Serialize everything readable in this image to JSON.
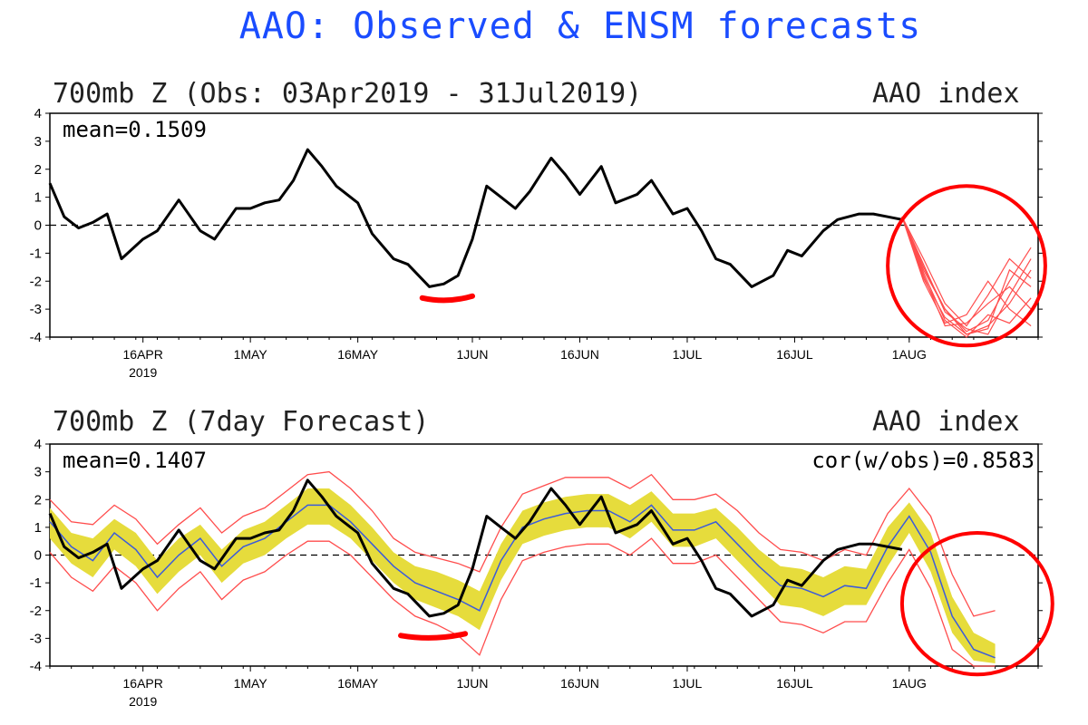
{
  "title": "AAO: Observed & ENSM forecasts",
  "colors": {
    "title": "#1a4cff",
    "observed": "#000000",
    "ens_mean": "#3b5bdb",
    "ens_band": "#e6dc3c",
    "ens_member": "#ff4d4d",
    "annotation": "#ff0000"
  },
  "chart_data": [
    {
      "type": "line",
      "panel_title": "700mb Z (Obs: 03Apr2019 - 31Jul2019)",
      "right_label": "AAO index",
      "stat_label": "mean=0.1509",
      "ylim": [
        -4,
        4
      ],
      "yticks": [
        "4",
        "3",
        "2",
        "1",
        "0",
        "-1",
        "-2",
        "-3",
        "-4"
      ],
      "xticks": [
        {
          "date": "2019-04-16",
          "label": "16APR",
          "sublabel": "2019"
        },
        {
          "date": "2019-05-01",
          "label": "1MAY"
        },
        {
          "date": "2019-05-16",
          "label": "16MAY"
        },
        {
          "date": "2019-06-01",
          "label": "1JUN"
        },
        {
          "date": "2019-06-16",
          "label": "16JUN"
        },
        {
          "date": "2019-07-01",
          "label": "1JUL"
        },
        {
          "date": "2019-07-16",
          "label": "16JUL"
        },
        {
          "date": "2019-08-01",
          "label": "1AUG"
        }
      ],
      "xlim": [
        "2019-04-03",
        "2019-08-19"
      ],
      "zero_line": "dashed",
      "observed": {
        "x": [
          "2019-04-03",
          "2019-04-05",
          "2019-04-07",
          "2019-04-09",
          "2019-04-11",
          "2019-04-13",
          "2019-04-16",
          "2019-04-18",
          "2019-04-21",
          "2019-04-24",
          "2019-04-26",
          "2019-04-29",
          "2019-05-01",
          "2019-05-03",
          "2019-05-05",
          "2019-05-07",
          "2019-05-09",
          "2019-05-11",
          "2019-05-13",
          "2019-05-16",
          "2019-05-18",
          "2019-05-21",
          "2019-05-23",
          "2019-05-26",
          "2019-05-28",
          "2019-05-30",
          "2019-06-01",
          "2019-06-03",
          "2019-06-05",
          "2019-06-07",
          "2019-06-09",
          "2019-06-12",
          "2019-06-14",
          "2019-06-16",
          "2019-06-19",
          "2019-06-21",
          "2019-06-24",
          "2019-06-26",
          "2019-06-29",
          "2019-07-01",
          "2019-07-03",
          "2019-07-05",
          "2019-07-07",
          "2019-07-10",
          "2019-07-13",
          "2019-07-15",
          "2019-07-17",
          "2019-07-20",
          "2019-07-22",
          "2019-07-25",
          "2019-07-27",
          "2019-07-29",
          "2019-07-31"
        ],
        "y": [
          1.5,
          0.3,
          -0.1,
          0.1,
          0.4,
          -1.2,
          -0.5,
          -0.2,
          0.9,
          -0.2,
          -0.5,
          0.6,
          0.6,
          0.8,
          0.9,
          1.6,
          2.7,
          2.1,
          1.4,
          0.8,
          -0.3,
          -1.2,
          -1.4,
          -2.2,
          -2.1,
          -1.8,
          -0.5,
          1.4,
          1.0,
          0.6,
          1.2,
          2.4,
          1.8,
          1.1,
          2.1,
          0.8,
          1.1,
          1.6,
          0.4,
          0.6,
          -0.2,
          -1.2,
          -1.4,
          -2.2,
          -1.8,
          -0.9,
          -1.1,
          -0.2,
          0.2,
          0.4,
          0.4,
          0.3,
          0.2
        ]
      },
      "forecast_start": "2019-07-31",
      "ens_members": [
        {
          "x": [
            "2019-07-31",
            "2019-08-03",
            "2019-08-06",
            "2019-08-09",
            "2019-08-12",
            "2019-08-15",
            "2019-08-18"
          ],
          "y": [
            0.3,
            -1.5,
            -3.0,
            -3.8,
            -3.4,
            -2.0,
            -0.8
          ]
        },
        {
          "x": [
            "2019-07-31",
            "2019-08-03",
            "2019-08-06",
            "2019-08-09",
            "2019-08-12",
            "2019-08-15",
            "2019-08-18"
          ],
          "y": [
            0.3,
            -1.9,
            -3.3,
            -3.9,
            -3.6,
            -2.8,
            -1.6
          ]
        },
        {
          "x": [
            "2019-07-31",
            "2019-08-03",
            "2019-08-06",
            "2019-08-09",
            "2019-08-12",
            "2019-08-15",
            "2019-08-18"
          ],
          "y": [
            0.3,
            -1.2,
            -2.8,
            -3.6,
            -2.5,
            -1.2,
            -1.9
          ]
        },
        {
          "x": [
            "2019-07-31",
            "2019-08-03",
            "2019-08-06",
            "2019-08-09",
            "2019-08-12",
            "2019-08-15",
            "2019-08-18"
          ],
          "y": [
            0.3,
            -1.7,
            -3.4,
            -4.0,
            -3.2,
            -3.5,
            -2.6
          ]
        },
        {
          "x": [
            "2019-07-31",
            "2019-08-03",
            "2019-08-06",
            "2019-08-09",
            "2019-08-12",
            "2019-08-15",
            "2019-08-18"
          ],
          "y": [
            0.3,
            -1.4,
            -3.1,
            -3.7,
            -3.9,
            -2.5,
            -1.2
          ]
        },
        {
          "x": [
            "2019-07-31",
            "2019-08-03",
            "2019-08-06",
            "2019-08-09",
            "2019-08-12",
            "2019-08-15",
            "2019-08-18"
          ],
          "y": [
            0.3,
            -2.0,
            -3.5,
            -3.2,
            -2.0,
            -3.0,
            -3.6
          ]
        },
        {
          "x": [
            "2019-07-31",
            "2019-08-03",
            "2019-08-06",
            "2019-08-09",
            "2019-08-12",
            "2019-08-15",
            "2019-08-18"
          ],
          "y": [
            0.3,
            -1.6,
            -3.0,
            -3.9,
            -3.7,
            -1.6,
            -2.2
          ]
        },
        {
          "x": [
            "2019-07-31",
            "2019-08-03",
            "2019-08-06",
            "2019-08-09",
            "2019-08-12",
            "2019-08-15",
            "2019-08-18"
          ],
          "y": [
            0.3,
            -1.8,
            -3.6,
            -3.5,
            -2.8,
            -2.2,
            -3.0
          ]
        }
      ],
      "annotations": [
        {
          "shape": "underline",
          "x": [
            "2019-05-25",
            "2019-06-01"
          ],
          "y": -2.6
        },
        {
          "shape": "loop",
          "x": [
            "2019-07-29",
            "2019-08-20"
          ],
          "y": [
            -4.3,
            1.4
          ]
        }
      ]
    },
    {
      "type": "line",
      "panel_title": "700mb Z (7day Forecast)",
      "right_label": "AAO index",
      "stat_label": "mean=0.1407",
      "cor_label": "cor(w/obs)=0.8583",
      "ylim": [
        -4,
        4
      ],
      "yticks": [
        "4",
        "3",
        "2",
        "1",
        "0",
        "-1",
        "-2",
        "-3",
        "-4"
      ],
      "xticks": [
        {
          "date": "2019-04-16",
          "label": "16APR",
          "sublabel": "2019"
        },
        {
          "date": "2019-05-01",
          "label": "1MAY"
        },
        {
          "date": "2019-05-16",
          "label": "16MAY"
        },
        {
          "date": "2019-06-01",
          "label": "1JUN"
        },
        {
          "date": "2019-06-16",
          "label": "16JUN"
        },
        {
          "date": "2019-07-01",
          "label": "1JUL"
        },
        {
          "date": "2019-07-16",
          "label": "16JUL"
        },
        {
          "date": "2019-08-01",
          "label": "1AUG"
        }
      ],
      "xlim": [
        "2019-04-03",
        "2019-08-19"
      ],
      "zero_line": "dashed",
      "observed": {
        "x": [
          "2019-04-03",
          "2019-04-05",
          "2019-04-07",
          "2019-04-09",
          "2019-04-11",
          "2019-04-13",
          "2019-04-16",
          "2019-04-18",
          "2019-04-21",
          "2019-04-24",
          "2019-04-26",
          "2019-04-29",
          "2019-05-01",
          "2019-05-03",
          "2019-05-05",
          "2019-05-07",
          "2019-05-09",
          "2019-05-11",
          "2019-05-13",
          "2019-05-16",
          "2019-05-18",
          "2019-05-21",
          "2019-05-23",
          "2019-05-26",
          "2019-05-28",
          "2019-05-30",
          "2019-06-01",
          "2019-06-03",
          "2019-06-05",
          "2019-06-07",
          "2019-06-09",
          "2019-06-12",
          "2019-06-14",
          "2019-06-16",
          "2019-06-19",
          "2019-06-21",
          "2019-06-24",
          "2019-06-26",
          "2019-06-29",
          "2019-07-01",
          "2019-07-03",
          "2019-07-05",
          "2019-07-07",
          "2019-07-10",
          "2019-07-13",
          "2019-07-15",
          "2019-07-17",
          "2019-07-20",
          "2019-07-22",
          "2019-07-25",
          "2019-07-27",
          "2019-07-29",
          "2019-07-31"
        ],
        "y": [
          1.5,
          0.3,
          -0.1,
          0.1,
          0.4,
          -1.2,
          -0.5,
          -0.2,
          0.9,
          -0.2,
          -0.5,
          0.6,
          0.6,
          0.8,
          0.9,
          1.6,
          2.7,
          2.1,
          1.4,
          0.8,
          -0.3,
          -1.2,
          -1.4,
          -2.2,
          -2.1,
          -1.8,
          -0.5,
          1.4,
          1.0,
          0.6,
          1.2,
          2.4,
          1.8,
          1.1,
          2.1,
          0.8,
          1.1,
          1.6,
          0.4,
          0.6,
          -0.2,
          -1.2,
          -1.4,
          -2.2,
          -1.8,
          -0.9,
          -1.1,
          -0.2,
          0.2,
          0.4,
          0.4,
          0.3,
          0.2
        ]
      },
      "ens_mean": {
        "x": [
          "2019-04-03",
          "2019-04-06",
          "2019-04-09",
          "2019-04-12",
          "2019-04-15",
          "2019-04-18",
          "2019-04-21",
          "2019-04-24",
          "2019-04-27",
          "2019-04-30",
          "2019-05-03",
          "2019-05-06",
          "2019-05-09",
          "2019-05-12",
          "2019-05-15",
          "2019-05-18",
          "2019-05-21",
          "2019-05-24",
          "2019-05-27",
          "2019-05-30",
          "2019-06-02",
          "2019-06-05",
          "2019-06-08",
          "2019-06-11",
          "2019-06-14",
          "2019-06-17",
          "2019-06-20",
          "2019-06-23",
          "2019-06-26",
          "2019-06-29",
          "2019-07-02",
          "2019-07-05",
          "2019-07-08",
          "2019-07-11",
          "2019-07-14",
          "2019-07-17",
          "2019-07-20",
          "2019-07-23",
          "2019-07-26",
          "2019-07-29",
          "2019-08-01",
          "2019-08-04",
          "2019-08-07",
          "2019-08-10",
          "2019-08-13"
        ],
        "y": [
          1.2,
          0.3,
          -0.2,
          0.8,
          0.2,
          -0.8,
          0.0,
          0.6,
          -0.4,
          0.3,
          0.6,
          1.2,
          1.8,
          1.8,
          1.2,
          0.4,
          -0.4,
          -1.0,
          -1.3,
          -1.6,
          -2.0,
          -0.2,
          1.0,
          1.3,
          1.5,
          1.6,
          1.6,
          1.2,
          1.8,
          0.9,
          0.9,
          1.2,
          0.4,
          -0.4,
          -1.1,
          -1.2,
          -1.5,
          -1.1,
          -1.2,
          0.3,
          1.4,
          0.1,
          -2.2,
          -3.4,
          -3.7
        ]
      },
      "ens_band": {
        "upper": [
          1.7,
          0.8,
          0.6,
          1.3,
          0.8,
          -0.2,
          0.6,
          1.1,
          0.2,
          0.9,
          1.2,
          1.8,
          2.4,
          2.4,
          1.8,
          1.0,
          0.1,
          -0.4,
          -0.6,
          -0.9,
          -1.3,
          0.4,
          1.6,
          1.9,
          2.1,
          2.2,
          2.2,
          1.8,
          2.3,
          1.5,
          1.5,
          1.7,
          1.0,
          0.2,
          -0.4,
          -0.5,
          -0.8,
          -0.4,
          -0.5,
          1.0,
          1.9,
          0.8,
          -1.5,
          -2.8,
          -3.2
        ],
        "lower": [
          0.6,
          -0.3,
          -0.8,
          0.2,
          -0.4,
          -1.4,
          -0.6,
          0.0,
          -1.0,
          -0.3,
          0.0,
          0.6,
          1.1,
          1.1,
          0.6,
          -0.2,
          -1.0,
          -1.6,
          -1.9,
          -2.2,
          -2.7,
          -0.9,
          0.4,
          0.7,
          0.9,
          1.0,
          1.0,
          0.6,
          1.2,
          0.3,
          0.3,
          0.6,
          -0.2,
          -1.0,
          -1.8,
          -1.9,
          -2.2,
          -1.8,
          -1.8,
          -0.4,
          0.8,
          -0.6,
          -2.8,
          -3.8,
          -3.9
        ]
      },
      "ens_envelope": {
        "upper": [
          2.0,
          1.2,
          1.1,
          1.8,
          1.3,
          0.4,
          1.1,
          1.7,
          0.8,
          1.4,
          1.7,
          2.3,
          2.9,
          3.0,
          2.4,
          1.6,
          0.6,
          0.1,
          -0.1,
          -0.3,
          -0.6,
          1.0,
          2.2,
          2.5,
          2.8,
          2.8,
          2.8,
          2.4,
          2.9,
          2.0,
          2.0,
          2.2,
          1.6,
          0.8,
          0.2,
          0.1,
          -0.2,
          0.2,
          0.0,
          1.5,
          2.4,
          1.4,
          -0.7,
          -2.2,
          -2.0
        ],
        "lower": [
          0.1,
          -0.8,
          -1.3,
          -0.4,
          -1.0,
          -2.0,
          -1.2,
          -0.6,
          -1.6,
          -0.9,
          -0.6,
          0.0,
          0.5,
          0.5,
          0.0,
          -0.8,
          -1.6,
          -2.2,
          -2.5,
          -2.9,
          -3.6,
          -1.6,
          -0.2,
          0.1,
          0.3,
          0.4,
          0.4,
          0.0,
          0.6,
          -0.3,
          -0.3,
          0.0,
          -0.8,
          -1.6,
          -2.4,
          -2.5,
          -2.8,
          -2.4,
          -2.4,
          -1.0,
          0.2,
          -1.2,
          -3.4,
          -4.0,
          -4.0
        ]
      },
      "annotations": [
        {
          "shape": "underline",
          "x": [
            "2019-05-22",
            "2019-05-31"
          ],
          "y": -2.9
        },
        {
          "shape": "loop",
          "x": [
            "2019-07-31",
            "2019-08-21"
          ],
          "y": [
            -4.3,
            0.8
          ]
        }
      ]
    }
  ]
}
